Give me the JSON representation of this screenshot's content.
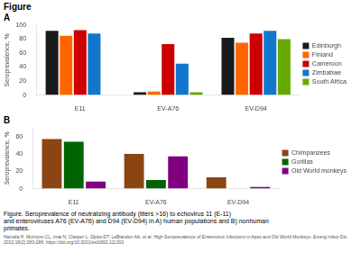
{
  "title": "Figure",
  "chart_data": [
    {
      "type": "bar",
      "title": "A",
      "ylabel": "Seroprevalence, %",
      "categories": [
        "E11",
        "EV-A76",
        "EV-D94"
      ],
      "series": [
        {
          "name": "Edinburgh",
          "color": "#1a1a1a",
          "values": [
            92,
            4,
            82
          ]
        },
        {
          "name": "Finland",
          "color": "#ff6600",
          "values": [
            85,
            5,
            75
          ]
        },
        {
          "name": "Cameroon",
          "color": "#cc0000",
          "values": [
            93,
            73,
            88
          ]
        },
        {
          "name": "Zimbabwe",
          "color": "#1177cc",
          "values": [
            88,
            45,
            92
          ]
        },
        {
          "name": "South Africa",
          "color": "#66aa00",
          "values": [
            0,
            4,
            80
          ]
        }
      ],
      "ylim": [
        0,
        100
      ],
      "yticks": [
        0,
        20,
        40,
        60,
        80,
        100
      ],
      "grid": false,
      "legend": "right"
    },
    {
      "type": "bar",
      "title": "B",
      "ylabel": "Seroprevalence, %",
      "categories": [
        "E11",
        "EV-A76",
        "EV-D94"
      ],
      "series": [
        {
          "name": "Chimpanzees",
          "color": "#8B4513",
          "values": [
            57,
            40,
            13
          ]
        },
        {
          "name": "Gorillas",
          "color": "#006400",
          "values": [
            54,
            10,
            0
          ]
        },
        {
          "name": "Old World monkeys",
          "color": "#800080",
          "values": [
            8,
            37,
            2
          ]
        }
      ],
      "ylim": [
        0,
        70
      ],
      "yticks": [
        0,
        20,
        40,
        60
      ],
      "grid": false,
      "legend": "right"
    }
  ],
  "caption": [
    "Figure. Seroprevalence of neutralizing antibody (titers >16) to echovirus 11 (E-11)",
    "and enteroviruses A76 (EV-A76) and D94 (EV-D94) in A) human populations and B) nonhuman",
    "primates."
  ],
  "citation": [
    "Harvala H, McIntyre CL, Imai N, Clasper L, Djoko-DT, LeBlandon AA, et al. High Seroprevalence of Enterovirus Infections in Apes and Old World Monkeys. Emerg Infect Dis.",
    "2012;18(2):283-288. https://doi.org/10.3201/eid1802.111303"
  ]
}
